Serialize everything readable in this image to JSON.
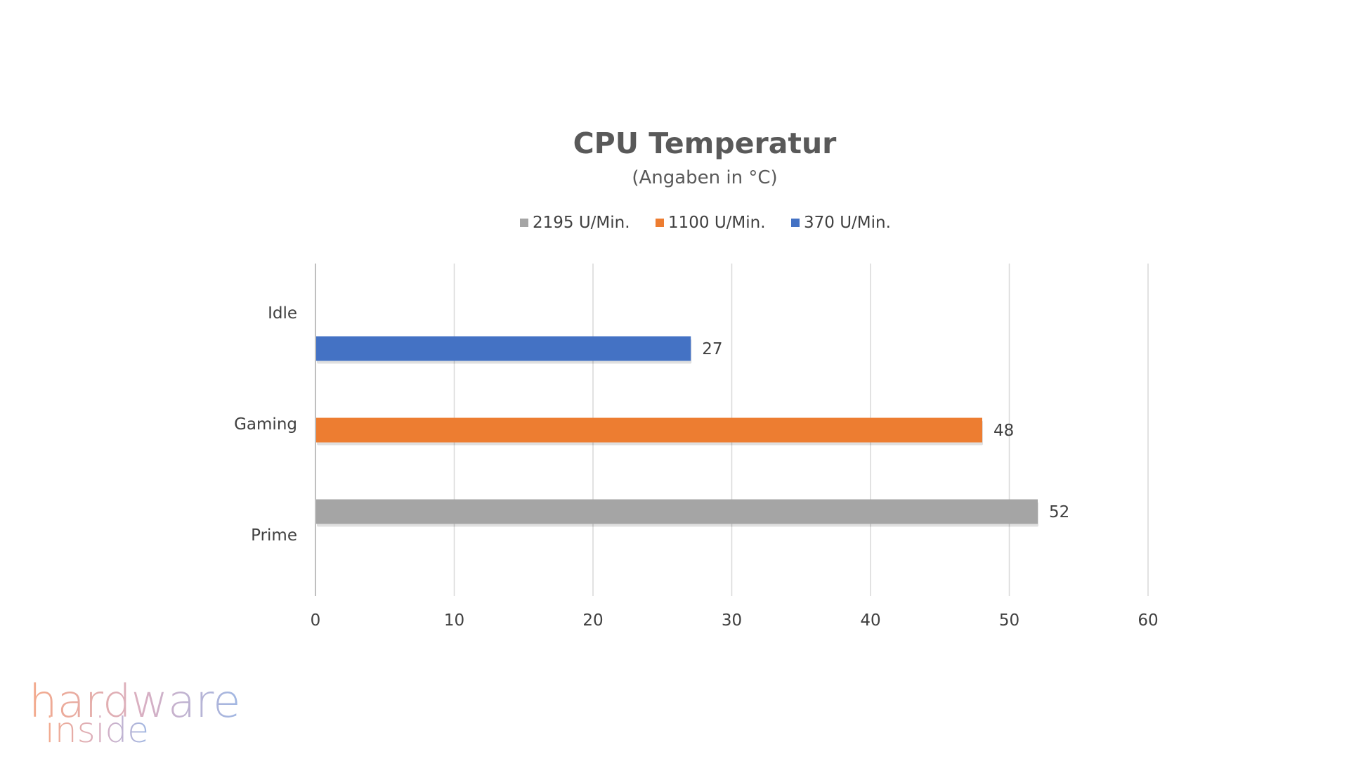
{
  "chart_data": {
    "type": "bar",
    "orientation": "horizontal",
    "title": "CPU Temperatur",
    "subtitle": "(Angaben in °C)",
    "categories": [
      "Idle",
      "Gaming",
      "Prime"
    ],
    "series": [
      {
        "name": "2195 U/Min.",
        "color": "#a5a5a5",
        "values": [
          null,
          null,
          52
        ]
      },
      {
        "name": "1100 U/Min.",
        "color": "#ed7d31",
        "values": [
          null,
          48,
          null
        ]
      },
      {
        "name": "370 U/Min.",
        "color": "#4472c4",
        "values": [
          27,
          null,
          null
        ]
      }
    ],
    "xlim": [
      0,
      60
    ],
    "xticks": [
      0,
      10,
      20,
      30,
      40,
      50,
      60
    ],
    "grid": true,
    "legend": "top"
  },
  "logo": {
    "line1": "hardware",
    "line2": "inside",
    "color_left": "#f4a98a",
    "color_right": "#9fb7e3"
  }
}
